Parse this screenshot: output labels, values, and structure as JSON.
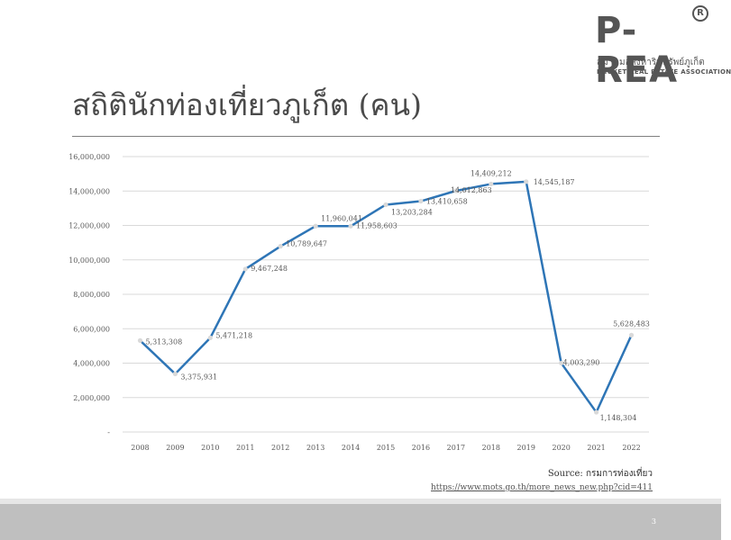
{
  "slide": {
    "title": "สถิตินักท่องเที่ยวภูเก็ต (คน)",
    "page_number": "3"
  },
  "logo": {
    "main": "P-REA",
    "registered": "R",
    "thai": "สมาคมอสังหาริมทรัพย์ภูเก็ต",
    "english": "PHUKET REAL ESTATE ASSOCIATION"
  },
  "source": {
    "label": "Source: กรมการท่องเที่ยว",
    "url": "https://www.mots.go.th/more_news_new.php?cid=411"
  },
  "colors": {
    "line": "#2e75b6",
    "marker": "#d9d9d9",
    "grid": "#d9d9d9",
    "text": "#595959"
  },
  "chart_data": {
    "type": "line",
    "categories": [
      "2008",
      "2009",
      "2010",
      "2011",
      "2012",
      "2013",
      "2014",
      "2015",
      "2016",
      "2017",
      "2018",
      "2019",
      "2020",
      "2021",
      "2022"
    ],
    "series": [
      {
        "values": [
          5313308,
          3375931,
          5471218,
          9467248,
          10789647,
          11960041,
          11958603,
          13203284,
          13410658,
          14012863,
          14409212,
          14545187,
          4003290,
          1148304,
          5628483
        ],
        "labels": [
          "5,313,308",
          "3,375,931",
          "5,471,218",
          "9,467,248",
          "10,789,647",
          "11,960,041",
          "11,958,603",
          "13,203,284",
          "13,410,658",
          "14,012,863",
          "14,409,212",
          "14,545,187",
          "4,003,290",
          "1,148,304",
          "5,628,483"
        ]
      }
    ],
    "ylim": [
      0,
      16000000
    ],
    "yticks": [
      "-",
      "2,000,000",
      "4,000,000",
      "6,000,000",
      "8,000,000",
      "10,000,000",
      "12,000,000",
      "14,000,000",
      "16,000,000"
    ],
    "grid": true,
    "legend": "none"
  }
}
